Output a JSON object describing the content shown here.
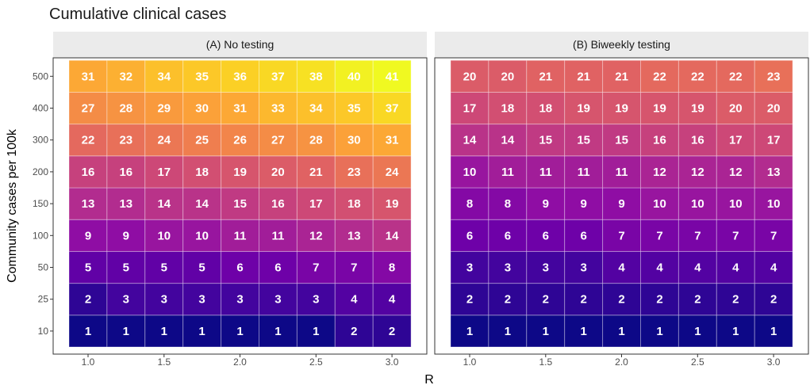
{
  "chart_data": {
    "type": "heatmap",
    "title": "Cumulative clinical cases",
    "xlabel": "R",
    "ylabel": "Community cases per 100k",
    "x": [
      1.0,
      1.25,
      1.5,
      1.75,
      2.0,
      2.25,
      2.5,
      2.75,
      3.0
    ],
    "x_tick_labels": [
      "1.0",
      "1.5",
      "2.0",
      "2.5",
      "3.0"
    ],
    "y_categories": [
      "10",
      "25",
      "50",
      "100",
      "150",
      "200",
      "300",
      "400",
      "500"
    ],
    "color_scale": {
      "palette": "plasma",
      "min": 1,
      "max": 41
    },
    "grid": true,
    "panels": [
      {
        "name": "(A) No testing",
        "values": [
          [
            1,
            1,
            1,
            1,
            1,
            1,
            1,
            2,
            2
          ],
          [
            2,
            3,
            3,
            3,
            3,
            3,
            3,
            4,
            4
          ],
          [
            5,
            5,
            5,
            5,
            6,
            6,
            7,
            7,
            8
          ],
          [
            9,
            9,
            10,
            10,
            11,
            11,
            12,
            13,
            14
          ],
          [
            13,
            13,
            14,
            14,
            15,
            16,
            17,
            18,
            19
          ],
          [
            16,
            16,
            17,
            18,
            19,
            20,
            21,
            23,
            24
          ],
          [
            22,
            23,
            24,
            25,
            26,
            27,
            28,
            30,
            31
          ],
          [
            27,
            28,
            29,
            30,
            31,
            33,
            34,
            35,
            37
          ],
          [
            31,
            32,
            34,
            35,
            36,
            37,
            38,
            40,
            41
          ]
        ]
      },
      {
        "name": "(B) Biweekly testing",
        "values": [
          [
            1,
            1,
            1,
            1,
            1,
            1,
            1,
            1,
            1
          ],
          [
            2,
            2,
            2,
            2,
            2,
            2,
            2,
            2,
            2
          ],
          [
            3,
            3,
            3,
            3,
            4,
            4,
            4,
            4,
            4
          ],
          [
            6,
            6,
            6,
            6,
            7,
            7,
            7,
            7,
            7
          ],
          [
            8,
            8,
            9,
            9,
            9,
            10,
            10,
            10,
            10
          ],
          [
            10,
            11,
            11,
            11,
            11,
            12,
            12,
            12,
            13
          ],
          [
            14,
            14,
            15,
            15,
            15,
            16,
            16,
            17,
            17
          ],
          [
            17,
            18,
            18,
            19,
            19,
            19,
            19,
            20,
            20
          ],
          [
            20,
            20,
            21,
            21,
            21,
            22,
            22,
            22,
            23
          ]
        ]
      }
    ]
  }
}
